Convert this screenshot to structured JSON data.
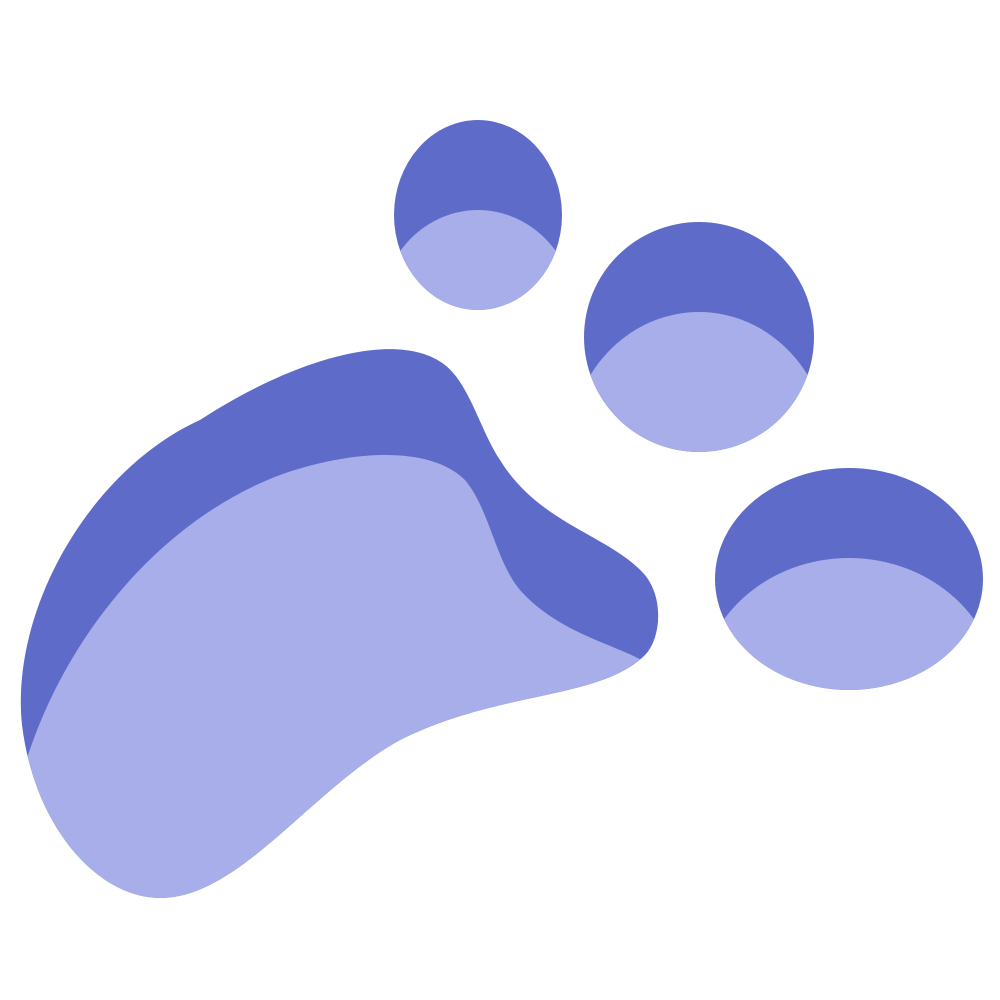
{
  "logo": {
    "icon": "paw-print-icon",
    "colors": {
      "background": "#ffffff",
      "dark": "#5f6bc8",
      "light": "#a7aee9"
    }
  }
}
